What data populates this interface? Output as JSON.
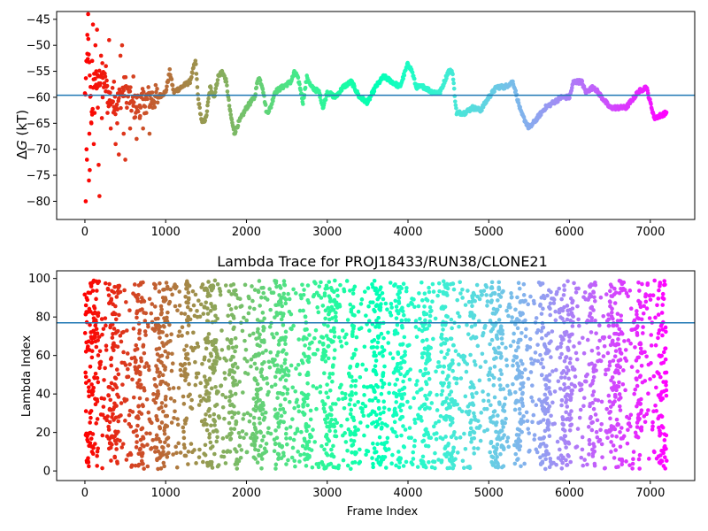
{
  "chart_data": [
    {
      "type": "scatter",
      "title": "",
      "xlabel": "",
      "ylabel": "ΔG (kT)",
      "ylabel_symbol": "Δ",
      "ylabel_var": "G",
      "ylabel_unit": " (kT)",
      "xlim": [
        -350,
        7550
      ],
      "ylim": [
        -83.5,
        -43.5
      ],
      "xticks": [
        0,
        1000,
        2000,
        3000,
        4000,
        5000,
        6000,
        7000
      ],
      "xtick_labels": [
        "0",
        "1000",
        "2000",
        "3000",
        "4000",
        "5000",
        "6000",
        "7000"
      ],
      "yticks": [
        -80,
        -75,
        -70,
        -65,
        -60,
        -55,
        -50,
        -45
      ],
      "ytick_labels": [
        "−80",
        "−75",
        "−70",
        "−65",
        "−60",
        "−55",
        "−50",
        "−45"
      ],
      "hline": -59.6,
      "hline_color": "#1f77b4",
      "colormap": "rainbow_r",
      "grid": false,
      "trace_keypoints": [
        {
          "x": 0,
          "y": -60
        },
        {
          "x": 40,
          "y": -50
        },
        {
          "x": 80,
          "y": -64
        },
        {
          "x": 120,
          "y": -56
        },
        {
          "x": 160,
          "y": -58
        },
        {
          "x": 200,
          "y": -55
        },
        {
          "x": 300,
          "y": -60
        },
        {
          "x": 400,
          "y": -61
        },
        {
          "x": 500,
          "y": -58
        },
        {
          "x": 600,
          "y": -62
        },
        {
          "x": 700,
          "y": -61
        },
        {
          "x": 800,
          "y": -60
        },
        {
          "x": 900,
          "y": -60
        },
        {
          "x": 1000,
          "y": -59
        },
        {
          "x": 1050,
          "y": -55
        },
        {
          "x": 1100,
          "y": -59
        },
        {
          "x": 1200,
          "y": -58
        },
        {
          "x": 1300,
          "y": -57
        },
        {
          "x": 1370,
          "y": -53
        },
        {
          "x": 1400,
          "y": -60
        },
        {
          "x": 1450,
          "y": -65
        },
        {
          "x": 1500,
          "y": -64
        },
        {
          "x": 1550,
          "y": -58
        },
        {
          "x": 1600,
          "y": -60
        },
        {
          "x": 1650,
          "y": -56
        },
        {
          "x": 1700,
          "y": -55
        },
        {
          "x": 1750,
          "y": -57
        },
        {
          "x": 1800,
          "y": -63
        },
        {
          "x": 1850,
          "y": -67
        },
        {
          "x": 1900,
          "y": -65
        },
        {
          "x": 2000,
          "y": -62
        },
        {
          "x": 2100,
          "y": -60
        },
        {
          "x": 2150,
          "y": -56
        },
        {
          "x": 2200,
          "y": -58
        },
        {
          "x": 2250,
          "y": -63
        },
        {
          "x": 2300,
          "y": -62
        },
        {
          "x": 2350,
          "y": -59
        },
        {
          "x": 2450,
          "y": -58
        },
        {
          "x": 2550,
          "y": -57
        },
        {
          "x": 2600,
          "y": -55
        },
        {
          "x": 2650,
          "y": -57
        },
        {
          "x": 2700,
          "y": -61
        },
        {
          "x": 2750,
          "y": -56
        },
        {
          "x": 2800,
          "y": -58
        },
        {
          "x": 2900,
          "y": -59
        },
        {
          "x": 2950,
          "y": -62
        },
        {
          "x": 3000,
          "y": -59
        },
        {
          "x": 3100,
          "y": -60
        },
        {
          "x": 3200,
          "y": -58
        },
        {
          "x": 3300,
          "y": -57
        },
        {
          "x": 3400,
          "y": -60
        },
        {
          "x": 3500,
          "y": -61
        },
        {
          "x": 3600,
          "y": -58
        },
        {
          "x": 3700,
          "y": -56
        },
        {
          "x": 3800,
          "y": -57
        },
        {
          "x": 3900,
          "y": -58
        },
        {
          "x": 4000,
          "y": -53.5
        },
        {
          "x": 4050,
          "y": -55
        },
        {
          "x": 4100,
          "y": -58
        },
        {
          "x": 4200,
          "y": -58
        },
        {
          "x": 4300,
          "y": -59
        },
        {
          "x": 4400,
          "y": -59
        },
        {
          "x": 4500,
          "y": -55
        },
        {
          "x": 4550,
          "y": -55
        },
        {
          "x": 4600,
          "y": -63
        },
        {
          "x": 4700,
          "y": -63
        },
        {
          "x": 4800,
          "y": -62
        },
        {
          "x": 4900,
          "y": -62.5
        },
        {
          "x": 5000,
          "y": -60
        },
        {
          "x": 5100,
          "y": -58
        },
        {
          "x": 5200,
          "y": -58
        },
        {
          "x": 5300,
          "y": -57
        },
        {
          "x": 5400,
          "y": -63
        },
        {
          "x": 5500,
          "y": -66
        },
        {
          "x": 5600,
          "y": -64
        },
        {
          "x": 5700,
          "y": -62
        },
        {
          "x": 5800,
          "y": -61
        },
        {
          "x": 5900,
          "y": -60
        },
        {
          "x": 6000,
          "y": -60
        },
        {
          "x": 6050,
          "y": -57
        },
        {
          "x": 6150,
          "y": -57
        },
        {
          "x": 6200,
          "y": -59
        },
        {
          "x": 6300,
          "y": -58
        },
        {
          "x": 6400,
          "y": -60
        },
        {
          "x": 6500,
          "y": -62
        },
        {
          "x": 6700,
          "y": -62
        },
        {
          "x": 6850,
          "y": -59
        },
        {
          "x": 6950,
          "y": -58
        },
        {
          "x": 7050,
          "y": -64
        },
        {
          "x": 7200,
          "y": -63
        }
      ],
      "early_scatter_points": [
        {
          "x": 10,
          "y": -80
        },
        {
          "x": 20,
          "y": -70
        },
        {
          "x": 25,
          "y": -72
        },
        {
          "x": 30,
          "y": -48
        },
        {
          "x": 40,
          "y": -44
        },
        {
          "x": 50,
          "y": -76
        },
        {
          "x": 55,
          "y": -67
        },
        {
          "x": 60,
          "y": -74
        },
        {
          "x": 70,
          "y": -58
        },
        {
          "x": 80,
          "y": -65
        },
        {
          "x": 90,
          "y": -53
        },
        {
          "x": 100,
          "y": -46
        },
        {
          "x": 110,
          "y": -69
        },
        {
          "x": 120,
          "y": -63
        },
        {
          "x": 130,
          "y": -50
        },
        {
          "x": 140,
          "y": -55
        },
        {
          "x": 150,
          "y": -47
        },
        {
          "x": 160,
          "y": -62
        },
        {
          "x": 170,
          "y": -73
        },
        {
          "x": 180,
          "y": -79
        },
        {
          "x": 190,
          "y": -56
        },
        {
          "x": 200,
          "y": -52
        },
        {
          "x": 210,
          "y": -64
        },
        {
          "x": 220,
          "y": -60
        },
        {
          "x": 240,
          "y": -58
        },
        {
          "x": 260,
          "y": -54
        },
        {
          "x": 280,
          "y": -63
        },
        {
          "x": 300,
          "y": -49
        },
        {
          "x": 320,
          "y": -66
        },
        {
          "x": 340,
          "y": -61
        },
        {
          "x": 360,
          "y": -57
        },
        {
          "x": 380,
          "y": -69
        },
        {
          "x": 400,
          "y": -65
        },
        {
          "x": 420,
          "y": -71
        },
        {
          "x": 440,
          "y": -52
        },
        {
          "x": 460,
          "y": -50
        },
        {
          "x": 480,
          "y": -67
        },
        {
          "x": 500,
          "y": -72
        },
        {
          "x": 520,
          "y": -62
        },
        {
          "x": 560,
          "y": -66
        },
        {
          "x": 600,
          "y": -56
        },
        {
          "x": 640,
          "y": -68
        },
        {
          "x": 680,
          "y": -64
        },
        {
          "x": 720,
          "y": -66
        },
        {
          "x": 760,
          "y": -63
        },
        {
          "x": 800,
          "y": -67
        },
        {
          "x": 840,
          "y": -62
        },
        {
          "x": 900,
          "y": -61
        }
      ]
    },
    {
      "type": "scatter",
      "title": "Lambda Trace for PROJ18433/RUN38/CLONE21",
      "xlabel": "Frame Index",
      "ylabel": "Lambda Index",
      "xlim": [
        -350,
        7550
      ],
      "ylim": [
        -5,
        104
      ],
      "xticks": [
        0,
        1000,
        2000,
        3000,
        4000,
        5000,
        6000,
        7000
      ],
      "xtick_labels": [
        "0",
        "1000",
        "2000",
        "3000",
        "4000",
        "5000",
        "6000",
        "7000"
      ],
      "yticks": [
        0,
        20,
        40,
        60,
        80,
        100
      ],
      "ytick_labels": [
        "0",
        "20",
        "40",
        "60",
        "80",
        "100"
      ],
      "hline": 77,
      "hline_color": "#1f77b4",
      "colormap": "rainbow_r",
      "grid": false,
      "x_range": [
        0,
        7200
      ],
      "lambda_range": [
        0,
        99
      ]
    }
  ]
}
